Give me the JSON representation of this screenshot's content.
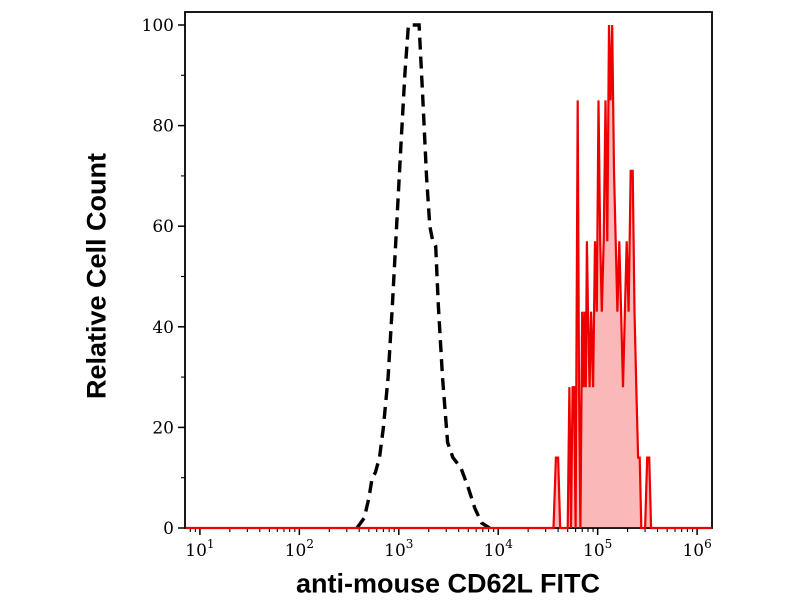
{
  "figure": {
    "xlabel": "anti-mouse CD62L FITC",
    "ylabel": "Relative Cell Count"
  },
  "colors": {
    "axis": "#000000",
    "dashed_curve": "#000000",
    "red_curve": "#ee0000",
    "red_fill": "rgba(238,0,0,0.28)"
  },
  "chart_data": {
    "type": "line",
    "title": "",
    "xlabel": "anti-mouse CD62L FITC",
    "ylabel": "Relative Cell Count",
    "x_scale": "log",
    "xlim": [
      7,
      1400000
    ],
    "ylim": [
      0,
      100
    ],
    "x_tick_exponents": [
      1,
      2,
      3,
      4,
      5,
      6
    ],
    "y_ticks": [
      0,
      20,
      40,
      60,
      80,
      100
    ],
    "y_minor_step": 10,
    "grid": false,
    "legend": null,
    "series": [
      {
        "name": "dashed_black_control_histogram",
        "color": "#000000",
        "width": 3.4,
        "dash": "12 7",
        "fill": null,
        "points": [
          [
            380,
            0
          ],
          [
            450,
            2
          ],
          [
            500,
            6
          ],
          [
            540,
            10
          ],
          [
            580,
            11
          ],
          [
            640,
            14
          ],
          [
            700,
            20
          ],
          [
            780,
            30
          ],
          [
            860,
            44
          ],
          [
            950,
            60
          ],
          [
            1050,
            76
          ],
          [
            1150,
            90
          ],
          [
            1250,
            100
          ],
          [
            1600,
            100
          ],
          [
            1750,
            85
          ],
          [
            1900,
            70
          ],
          [
            2050,
            60
          ],
          [
            2200,
            57
          ],
          [
            2350,
            56
          ],
          [
            2500,
            44
          ],
          [
            2750,
            30
          ],
          [
            3100,
            17
          ],
          [
            3500,
            14
          ],
          [
            4200,
            12
          ],
          [
            5000,
            8
          ],
          [
            5800,
            4
          ],
          [
            6800,
            1
          ],
          [
            8200,
            0
          ]
        ]
      },
      {
        "name": "solid_red_filled_histogram",
        "color": "#ee0000",
        "width": 2.2,
        "dash": null,
        "fill": "rgba(238,0,0,0.28)",
        "points": [
          [
            7.2,
            0
          ],
          [
            36000,
            0
          ],
          [
            38000,
            14
          ],
          [
            40000,
            14
          ],
          [
            42000,
            0
          ],
          [
            50000,
            0
          ],
          [
            52000,
            28
          ],
          [
            54000,
            0
          ],
          [
            56000,
            28
          ],
          [
            58000,
            28
          ],
          [
            60000,
            0
          ],
          [
            63000,
            85
          ],
          [
            65000,
            28
          ],
          [
            67000,
            0
          ],
          [
            70000,
            43
          ],
          [
            72000,
            28
          ],
          [
            74000,
            43
          ],
          [
            76000,
            28
          ],
          [
            78000,
            57
          ],
          [
            80000,
            43
          ],
          [
            83000,
            28
          ],
          [
            86000,
            43
          ],
          [
            90000,
            28
          ],
          [
            94000,
            57
          ],
          [
            98000,
            43
          ],
          [
            102000,
            85
          ],
          [
            106000,
            57
          ],
          [
            110000,
            43
          ],
          [
            115000,
            57
          ],
          [
            120000,
            85
          ],
          [
            125000,
            57
          ],
          [
            130000,
            100
          ],
          [
            135000,
            85
          ],
          [
            140000,
            100
          ],
          [
            146000,
            71
          ],
          [
            152000,
            57
          ],
          [
            158000,
            43
          ],
          [
            165000,
            57
          ],
          [
            172000,
            43
          ],
          [
            180000,
            28
          ],
          [
            188000,
            43
          ],
          [
            196000,
            57
          ],
          [
            205000,
            43
          ],
          [
            215000,
            71
          ],
          [
            225000,
            71
          ],
          [
            235000,
            43
          ],
          [
            245000,
            28
          ],
          [
            255000,
            14
          ],
          [
            265000,
            14
          ],
          [
            275000,
            0
          ],
          [
            300000,
            0
          ],
          [
            315000,
            14
          ],
          [
            330000,
            14
          ],
          [
            345000,
            0
          ],
          [
            1400000,
            0
          ]
        ]
      }
    ]
  }
}
